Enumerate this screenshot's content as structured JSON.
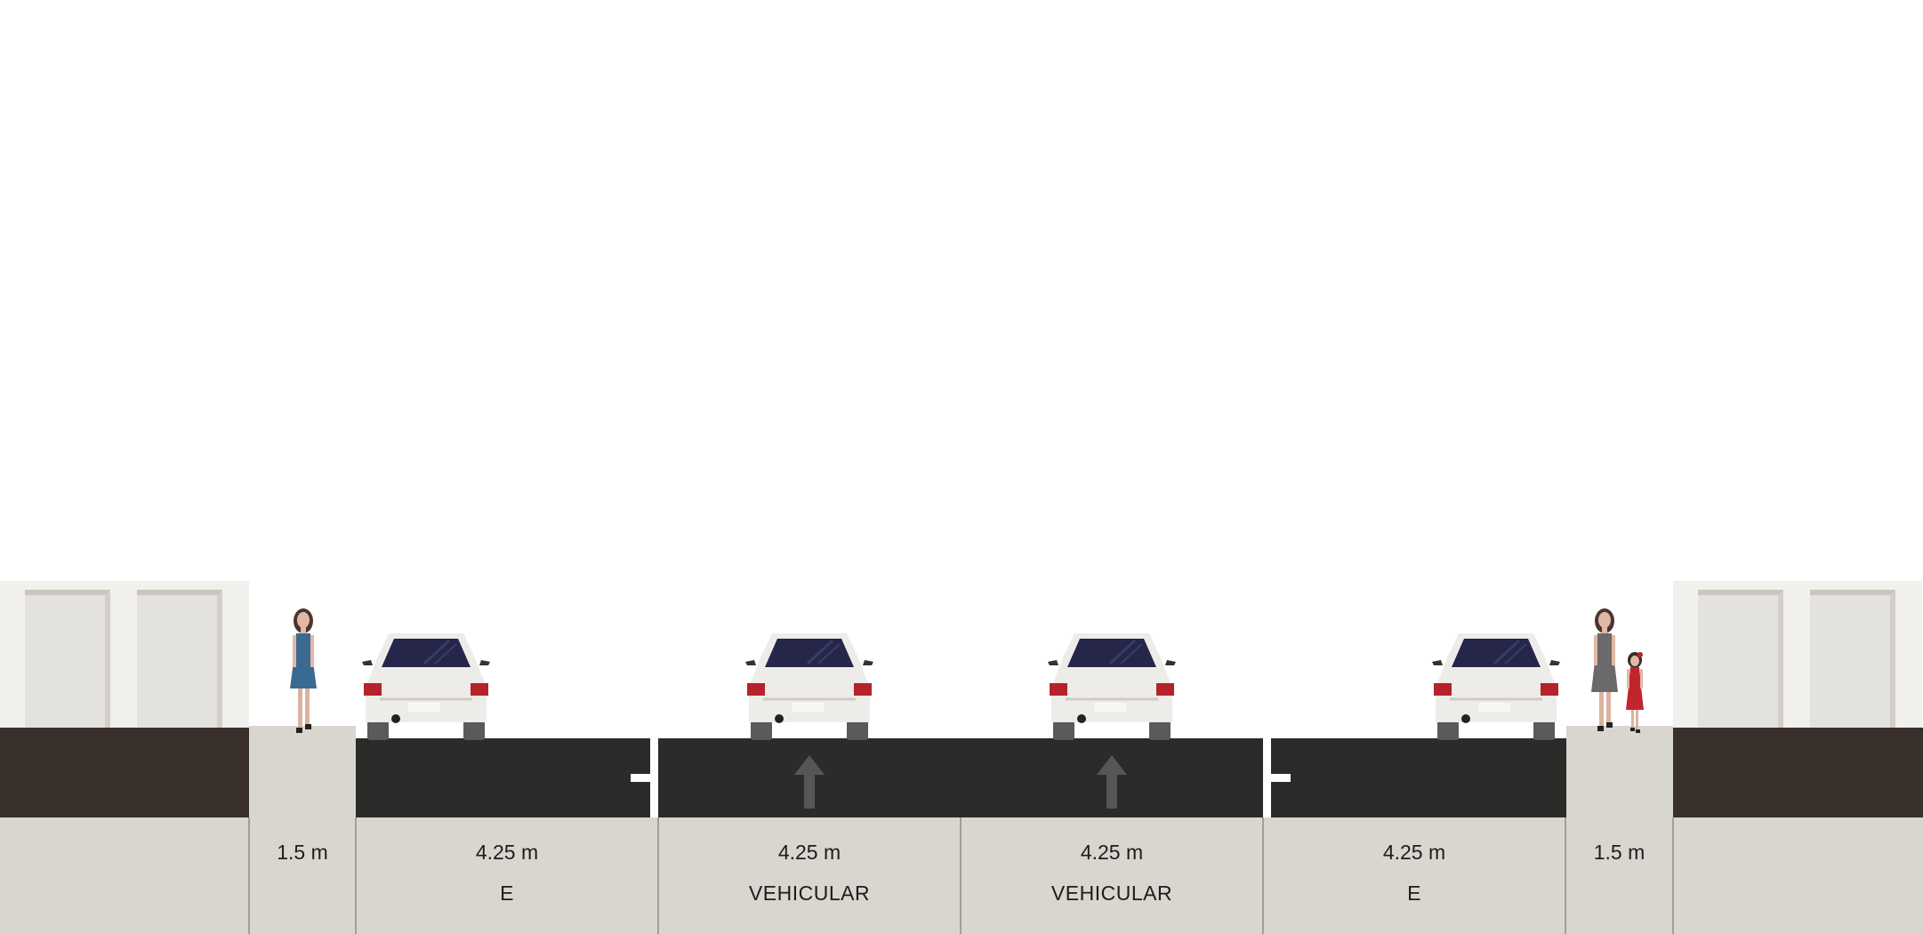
{
  "segments": [
    {
      "width": "1.5 m",
      "name": ""
    },
    {
      "width": "4.25 m",
      "name": "E"
    },
    {
      "width": "4.25 m",
      "name": "VEHICULAR"
    },
    {
      "width": "4.25 m",
      "name": "VEHICULAR"
    },
    {
      "width": "4.25 m",
      "name": "E"
    },
    {
      "width": "1.5 m",
      "name": ""
    }
  ],
  "colors": {
    "sky": "#ffffff",
    "asphalt": "#2a2c2a",
    "sidewalk": "#d9d5cf",
    "building": "#f1f0ec",
    "ground": "#3a302b",
    "car_body": "#eeece8",
    "car_window": "#25264a",
    "tail_light": "#b5222a",
    "lane_arrow": "#555755"
  },
  "icons": [
    "pedestrian-woman-blue",
    "car-rear",
    "lane-arrow-up",
    "pedestrian-woman-gray",
    "pedestrian-child-red"
  ]
}
